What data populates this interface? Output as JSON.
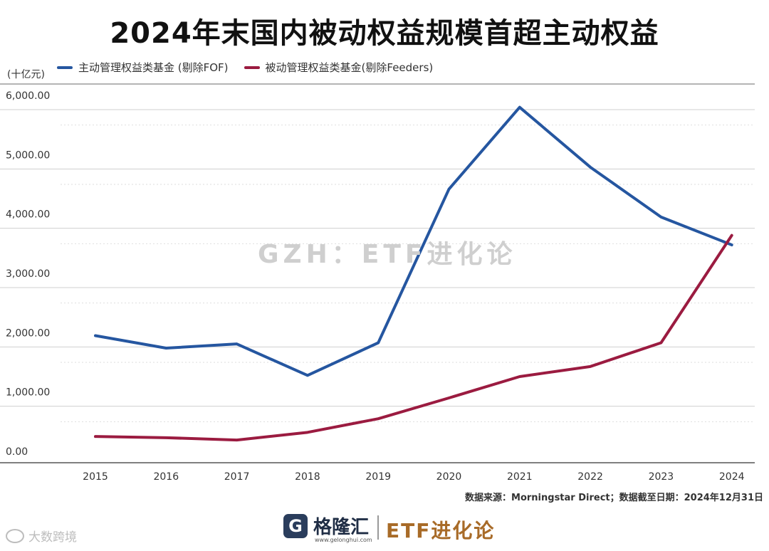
{
  "title": "2024年末国内被动权益规模首超主动权益",
  "unit_label": "(十亿元)",
  "watermark": "GZH：ETF进化论",
  "source_note": "数据来源：Morningstar Direct；数据截至日期：2024年12月31日",
  "footer": {
    "brand_logo_letter": "G",
    "brand_name": "格隆汇",
    "brand_domain": "www.gelonghui.com",
    "etf_brand": "ETF进化论",
    "weibo_text": "大数跨境"
  },
  "colors": {
    "active": "#2556a0",
    "passive": "#9b1b40",
    "grid": "#d0d0d0",
    "axis": "#555555"
  },
  "chart_data": {
    "type": "line",
    "title": "2024年末国内被动权益规模首超主动权益",
    "xlabel": "",
    "ylabel": "(十亿元)",
    "categories": [
      "2015",
      "2016",
      "2017",
      "2018",
      "2019",
      "2020",
      "2021",
      "2022",
      "2023",
      "2024"
    ],
    "ylim": [
      0,
      6000
    ],
    "yticks": [
      0,
      1000,
      2000,
      3000,
      4000,
      5000,
      6000
    ],
    "ytick_labels": [
      "0.00",
      "1,000.00",
      "2,000.00",
      "3,000.00",
      "4,000.00",
      "5,000.00",
      "6,000.00"
    ],
    "legend_position": "top-left",
    "series": [
      {
        "name": "主动管理权益类基金 (剔除FOF)",
        "color_key": "active",
        "values": [
          1950,
          1740,
          1810,
          1280,
          1830,
          4420,
          5800,
          4790,
          3950,
          3480
        ]
      },
      {
        "name": "被动管理权益类基金(剔除Feeders)",
        "color_key": "passive",
        "values": [
          250,
          230,
          190,
          320,
          550,
          900,
          1260,
          1430,
          1830,
          3640
        ]
      }
    ]
  }
}
